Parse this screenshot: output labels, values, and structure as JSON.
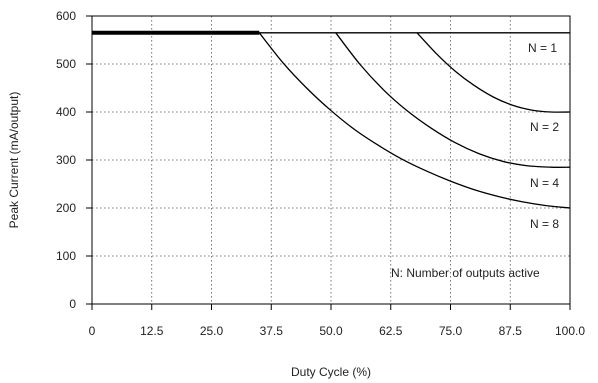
{
  "chart_data": {
    "type": "line",
    "title": "",
    "xlabel": "Duty Cycle (%)",
    "ylabel": "Peak Current (mA/output)",
    "xlim": [
      0,
      100
    ],
    "ylim": [
      0,
      600
    ],
    "x_ticks": [
      0,
      12.5,
      25,
      37.5,
      50,
      62.5,
      75,
      87.5,
      100
    ],
    "x_tick_labels": [
      "0",
      "12.5",
      "25.0",
      "37.5",
      "50.0",
      "62.5",
      "75.0",
      "87.5",
      "100.0"
    ],
    "y_ticks": [
      0,
      100,
      200,
      300,
      400,
      500,
      600
    ],
    "y_tick_labels": [
      "0",
      "100",
      "200",
      "300",
      "400",
      "500",
      "600"
    ],
    "grid": "dotted",
    "max_current_line": 565,
    "series": [
      {
        "name": "N = 1",
        "x": [
          68,
          72,
          76,
          80,
          84,
          88,
          92,
          96,
          100
        ],
        "y": [
          565,
          522,
          485,
          455,
          431,
          414,
          404,
          400,
          400
        ]
      },
      {
        "name": "N = 2",
        "x": [
          51,
          56,
          61,
          66,
          71,
          76,
          81,
          86,
          91,
          96,
          100
        ],
        "y": [
          565,
          500,
          446,
          402,
          366,
          336,
          313,
          297,
          288,
          285,
          285
        ]
      },
      {
        "name": "N = 4",
        "x": [
          35,
          40,
          45,
          50,
          55,
          60,
          65,
          70,
          75,
          80,
          85,
          90,
          95,
          100
        ],
        "y": [
          565,
          502,
          449,
          403,
          363,
          330,
          301,
          277,
          256,
          238,
          224,
          213,
          205,
          200
        ]
      },
      {
        "name": "N = 8",
        "x": [],
        "y": []
      }
    ],
    "curve_labels": [
      "N = 1",
      "N = 2",
      "N = 4",
      "N = 8"
    ],
    "annotation": "N: Number of outputs active"
  }
}
